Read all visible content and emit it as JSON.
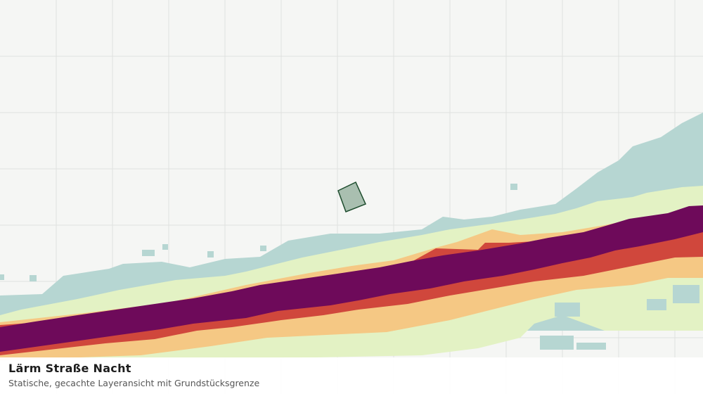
{
  "header": {
    "title": "Lärm Straße Nacht",
    "subtitle": "Statische, gecachte Layeransicht mit Grundstücksgrenze"
  }
}
